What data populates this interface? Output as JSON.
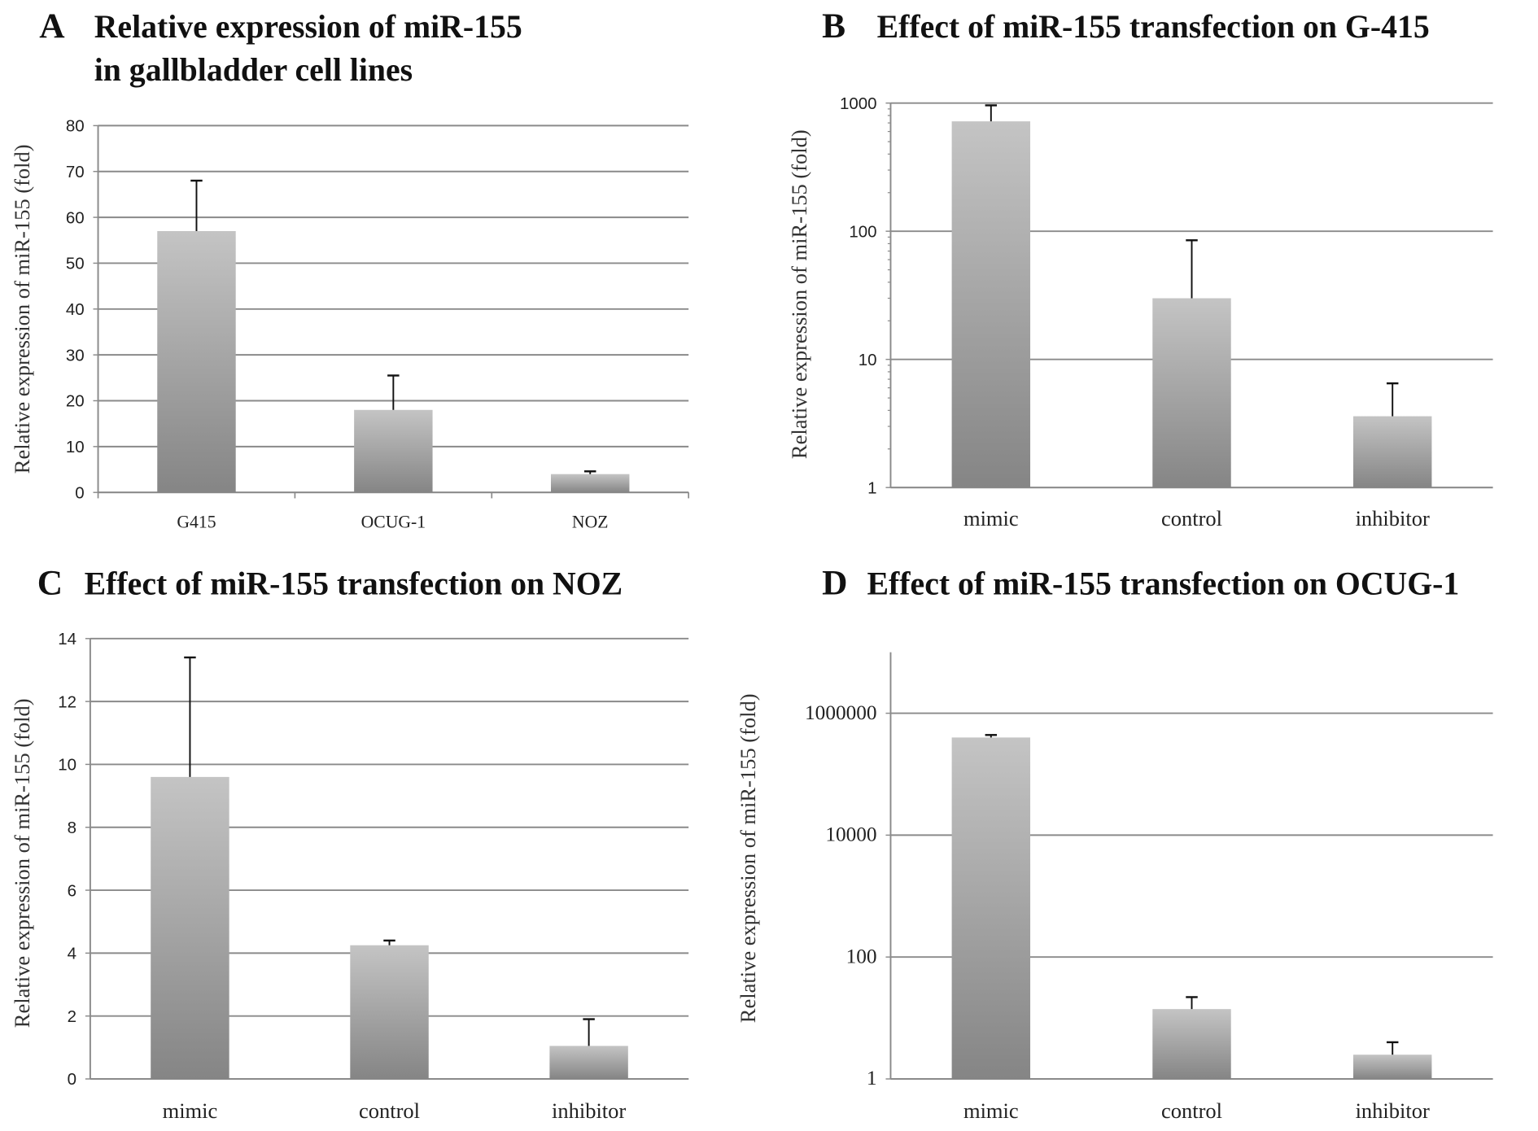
{
  "chart_data": [
    {
      "panel": "A",
      "type": "bar",
      "title": "Relative expression of miR-155",
      "title_line2": "in gallbladder cell lines",
      "ylabel": "Relative expression of miR-155 (fold)",
      "xlabel": "",
      "scale": "linear",
      "ylim": [
        0,
        80
      ],
      "yticks": [
        0,
        10,
        20,
        30,
        40,
        50,
        60,
        70,
        80
      ],
      "ytick_labels": [
        "0",
        "10",
        "20",
        "30",
        "40",
        "50",
        "60",
        "70",
        "80"
      ],
      "categories": [
        "G415",
        "OCUG-1",
        "NOZ"
      ],
      "values": [
        57,
        18,
        4
      ],
      "error_upper": [
        68,
        25.5,
        4.6
      ],
      "grid": true
    },
    {
      "panel": "B",
      "type": "bar",
      "title": "Effect of miR-155 transfection on G-415",
      "ylabel": "Relative expression of miR-155 (fold)",
      "xlabel": "",
      "scale": "log",
      "ylim": [
        1,
        1000
      ],
      "yticks": [
        1,
        10,
        100,
        1000
      ],
      "ytick_labels": [
        "1",
        "10",
        "100",
        "1000"
      ],
      "categories": [
        "mimic",
        "control",
        "inhibitor"
      ],
      "values": [
        720,
        30,
        3.6
      ],
      "error_upper": [
        960,
        85,
        6.5
      ],
      "grid": true
    },
    {
      "panel": "C",
      "type": "bar",
      "title": "Effect of miR-155 transfection on NOZ",
      "ylabel": "Relative expression of miR-155 (fold)",
      "xlabel": "",
      "scale": "linear",
      "ylim": [
        0,
        14
      ],
      "yticks": [
        0,
        2,
        4,
        6,
        8,
        10,
        12,
        14
      ],
      "ytick_labels": [
        "0",
        "2",
        "4",
        "6",
        "8",
        "10",
        "12",
        "14"
      ],
      "categories": [
        "mimic",
        "control",
        "inhibitor"
      ],
      "values": [
        9.6,
        4.25,
        1.05
      ],
      "error_upper": [
        13.4,
        4.4,
        1.9
      ],
      "grid": true
    },
    {
      "panel": "D",
      "type": "bar",
      "title": "Effect of miR-155 transfection on OCUG-1",
      "ylabel": "Relative expression of miR-155 (fold)",
      "xlabel": "",
      "scale": "log",
      "ylim": [
        1,
        10000000
      ],
      "yticks": [
        1,
        100,
        10000,
        1000000
      ],
      "ytick_labels": [
        "1",
        "100",
        "10000",
        "1000000"
      ],
      "categories": [
        "mimic",
        "control",
        "inhibitor"
      ],
      "values": [
        400000,
        14,
        2.5
      ],
      "error_upper": [
        440000,
        22,
        4
      ],
      "grid": true
    }
  ],
  "colors": {
    "bar_top": "#c4c4c4",
    "bar_bottom": "#858585",
    "grid": "#8a8a8a",
    "error": "#111111"
  }
}
